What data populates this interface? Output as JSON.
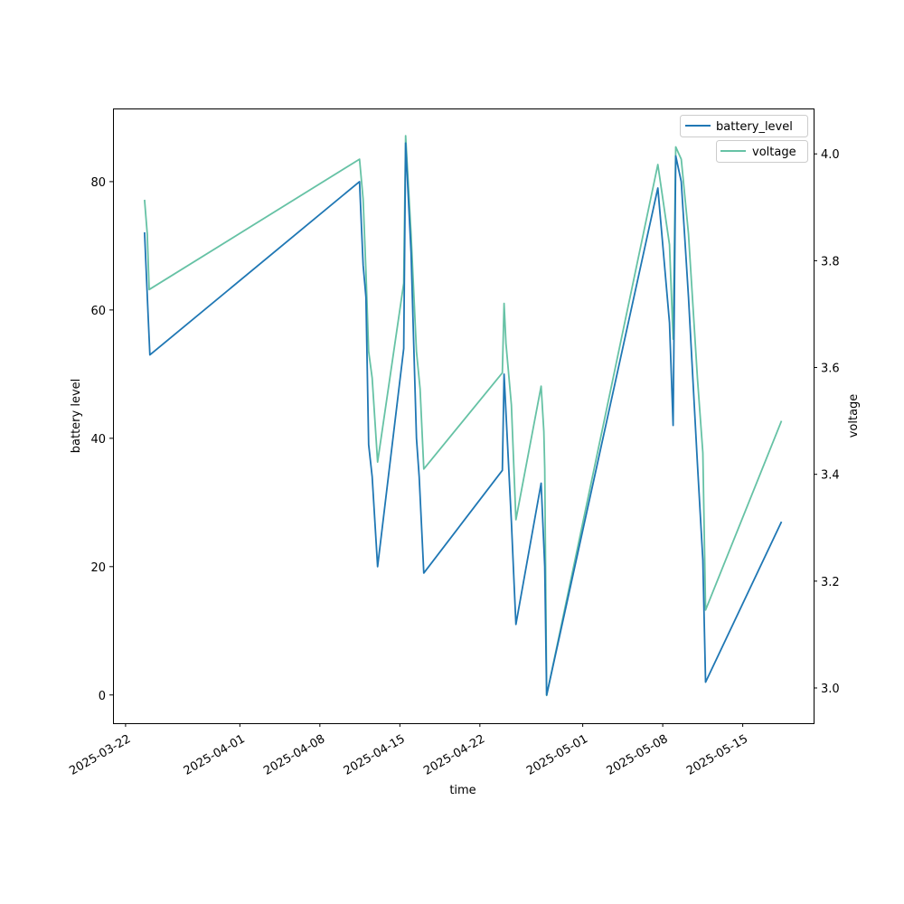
{
  "chart_data": {
    "type": "line",
    "xlabel": "time",
    "ylabel_left": "battery level",
    "ylabel_right": "voltage",
    "x_origin": "2025-03-22",
    "x_unit": "days since x_origin",
    "xlim": [
      -1.1,
      60.2
    ],
    "ylim_left": [
      -4.4,
      91.4
    ],
    "ylim_right": [
      2.934,
      4.085
    ],
    "x_ticks": [
      {
        "day": 0,
        "label": "2025-03-22"
      },
      {
        "day": 10,
        "label": "2025-04-01"
      },
      {
        "day": 17,
        "label": "2025-04-08"
      },
      {
        "day": 24,
        "label": "2025-04-15"
      },
      {
        "day": 31,
        "label": "2025-04-22"
      },
      {
        "day": 40,
        "label": "2025-05-01"
      },
      {
        "day": 47,
        "label": "2025-05-08"
      },
      {
        "day": 54,
        "label": "2025-05-15"
      }
    ],
    "y_ticks_left": [
      0,
      20,
      40,
      60,
      80
    ],
    "y_ticks_right": [
      "3.0",
      "3.2",
      "3.4",
      "3.6",
      "3.8",
      "4.0"
    ],
    "legend": {
      "placement": "top-right",
      "battery_label": "battery_level",
      "voltage_label": "voltage"
    },
    "colors": {
      "battery": "#1f77b4",
      "voltage": "#66c2a5"
    },
    "series": [
      {
        "name": "battery_level",
        "axis": "left",
        "x": [
          1.66,
          1.98,
          2.13,
          20.47,
          20.79,
          21.03,
          21.27,
          21.58,
          22.05,
          24.34,
          24.5,
          24.98,
          25.45,
          25.69,
          26.09,
          32.97,
          33.12,
          33.76,
          34.0,
          34.15,
          36.36,
          36.68,
          36.84,
          46.57,
          47.59,
          47.91,
          48.14,
          48.62,
          49.25,
          50.04,
          50.51,
          50.75,
          57.39
        ],
        "y": [
          72.1,
          59,
          53,
          80,
          67,
          62,
          39,
          34,
          20,
          54,
          86,
          69,
          40,
          34,
          19,
          35,
          50,
          27,
          17,
          11,
          33,
          20,
          0,
          79,
          58,
          42,
          84,
          80,
          62,
          36,
          21,
          2,
          27
        ]
      },
      {
        "name": "voltage",
        "axis": "right",
        "x": [
          1.66,
          1.9,
          2.06,
          20.47,
          20.79,
          21.03,
          21.27,
          21.58,
          22.05,
          24.34,
          24.5,
          24.98,
          25.45,
          25.77,
          26.09,
          32.97,
          33.12,
          33.28,
          33.76,
          34.15,
          36.36,
          36.6,
          36.68,
          36.84,
          46.57,
          47.59,
          47.91,
          48.14,
          48.62,
          49.25,
          50.04,
          50.51,
          50.75,
          57.39
        ],
        "y": [
          3.914,
          3.85,
          3.746,
          3.99,
          3.915,
          3.78,
          3.63,
          3.58,
          3.423,
          3.758,
          4.034,
          3.85,
          3.63,
          3.56,
          3.41,
          3.59,
          3.72,
          3.645,
          3.53,
          3.315,
          3.565,
          3.48,
          3.41,
          2.986,
          3.98,
          3.83,
          3.653,
          4.013,
          3.99,
          3.85,
          3.58,
          3.44,
          3.146,
          3.5
        ]
      }
    ]
  }
}
